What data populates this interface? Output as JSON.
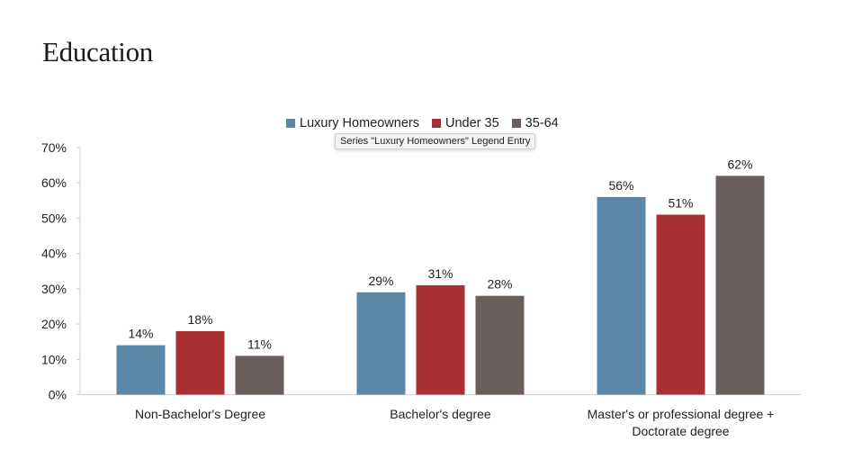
{
  "page": {
    "title": "Education"
  },
  "tooltip": {
    "text": "Series \"Luxury Homeowners\" Legend Entry"
  },
  "chart_data": {
    "type": "bar",
    "categories": [
      [
        "Non-Bachelor's Degree"
      ],
      [
        "Bachelor's degree"
      ],
      [
        "Master's or professional degree +",
        "Doctorate degree"
      ]
    ],
    "series": [
      {
        "name": "Luxury Homeowners",
        "color": "#5b87a8",
        "values": [
          14,
          29,
          56
        ],
        "labels": [
          "14%",
          "29%",
          "56%"
        ]
      },
      {
        "name": "Under 35",
        "color": "#a83033",
        "values": [
          18,
          31,
          51
        ],
        "labels": [
          "18%",
          "31%",
          "51%"
        ]
      },
      {
        "name": "35-64",
        "color": "#6b5f5d",
        "values": [
          11,
          28,
          62
        ],
        "labels": [
          "11%",
          "28%",
          "62%"
        ]
      }
    ],
    "ylim": [
      0,
      70
    ],
    "yticks": [
      "0%",
      "10%",
      "20%",
      "30%",
      "40%",
      "50%",
      "60%",
      "70%"
    ],
    "legend": "top-center",
    "grid": false
  }
}
